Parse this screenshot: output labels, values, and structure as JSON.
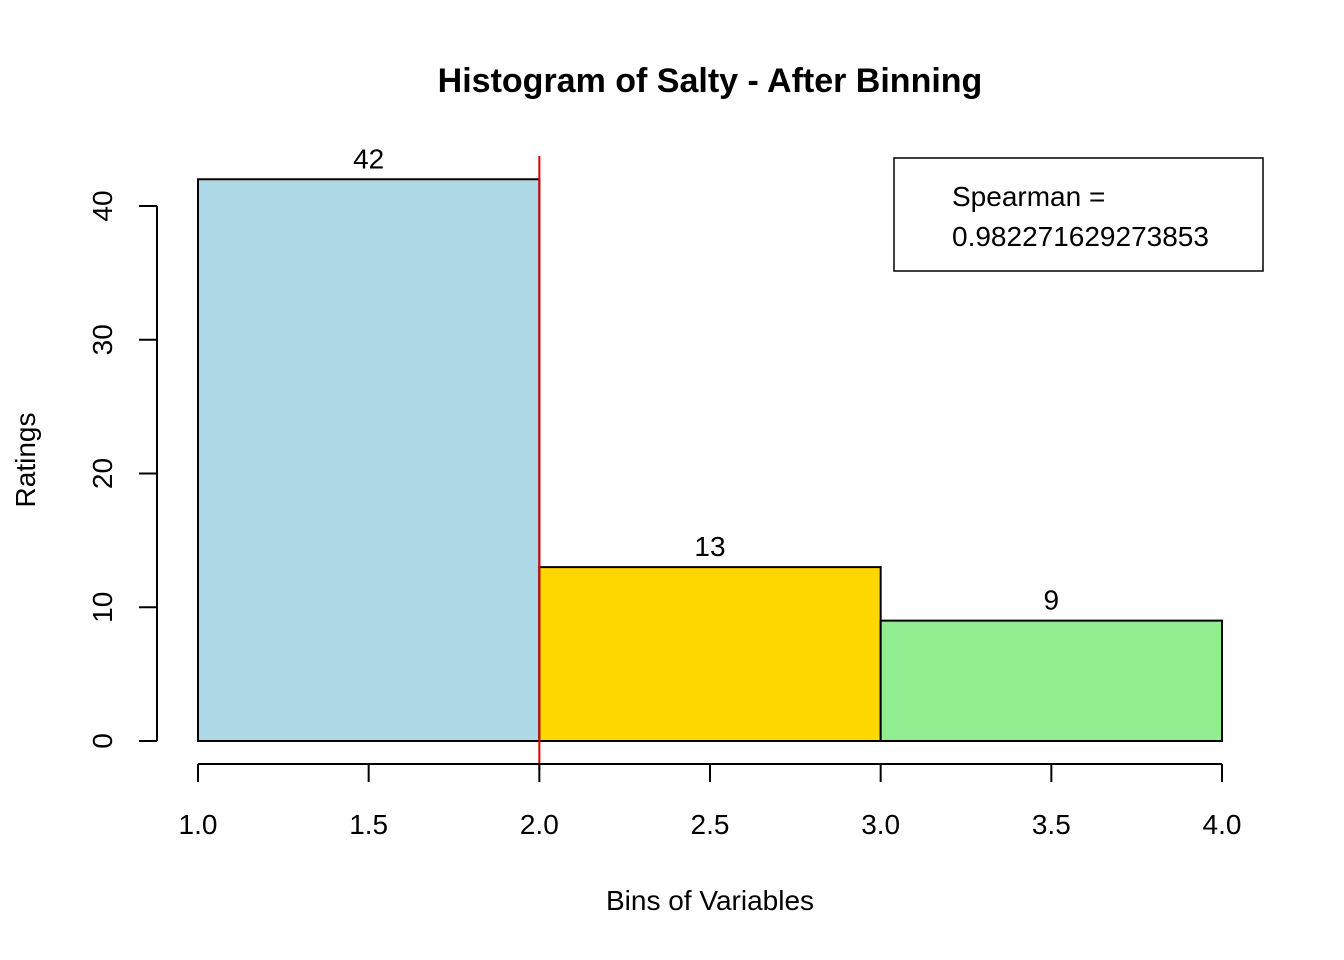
{
  "chart_data": {
    "type": "bar",
    "title": "Histogram of Salty - After Binning",
    "xlabel": "Bins of Variables",
    "ylabel": "Ratings",
    "bins": [
      {
        "start": 1.0,
        "end": 2.0,
        "value": 42,
        "label": "42",
        "color": "#add8e6"
      },
      {
        "start": 2.0,
        "end": 3.0,
        "value": 13,
        "label": "13",
        "color": "#ffd700"
      },
      {
        "start": 3.0,
        "end": 4.0,
        "value": 9,
        "label": "9",
        "color": "#90ee90"
      }
    ],
    "xlim": [
      1.0,
      4.0
    ],
    "ylim": [
      0,
      42
    ],
    "x_ticks": [
      1.0,
      1.5,
      2.0,
      2.5,
      3.0,
      3.5,
      4.0
    ],
    "x_tick_labels": [
      "1.0",
      "1.5",
      "2.0",
      "2.5",
      "3.0",
      "3.5",
      "4.0"
    ],
    "y_ticks": [
      0,
      10,
      20,
      30,
      40
    ],
    "y_tick_labels": [
      "0",
      "10",
      "20",
      "30",
      "40"
    ],
    "vline": {
      "x": 2.0,
      "color": "#e00000"
    },
    "legend": {
      "position": "top-right",
      "lines": [
        "Spearman =",
        "0.982271629273853"
      ]
    },
    "grid": false
  }
}
